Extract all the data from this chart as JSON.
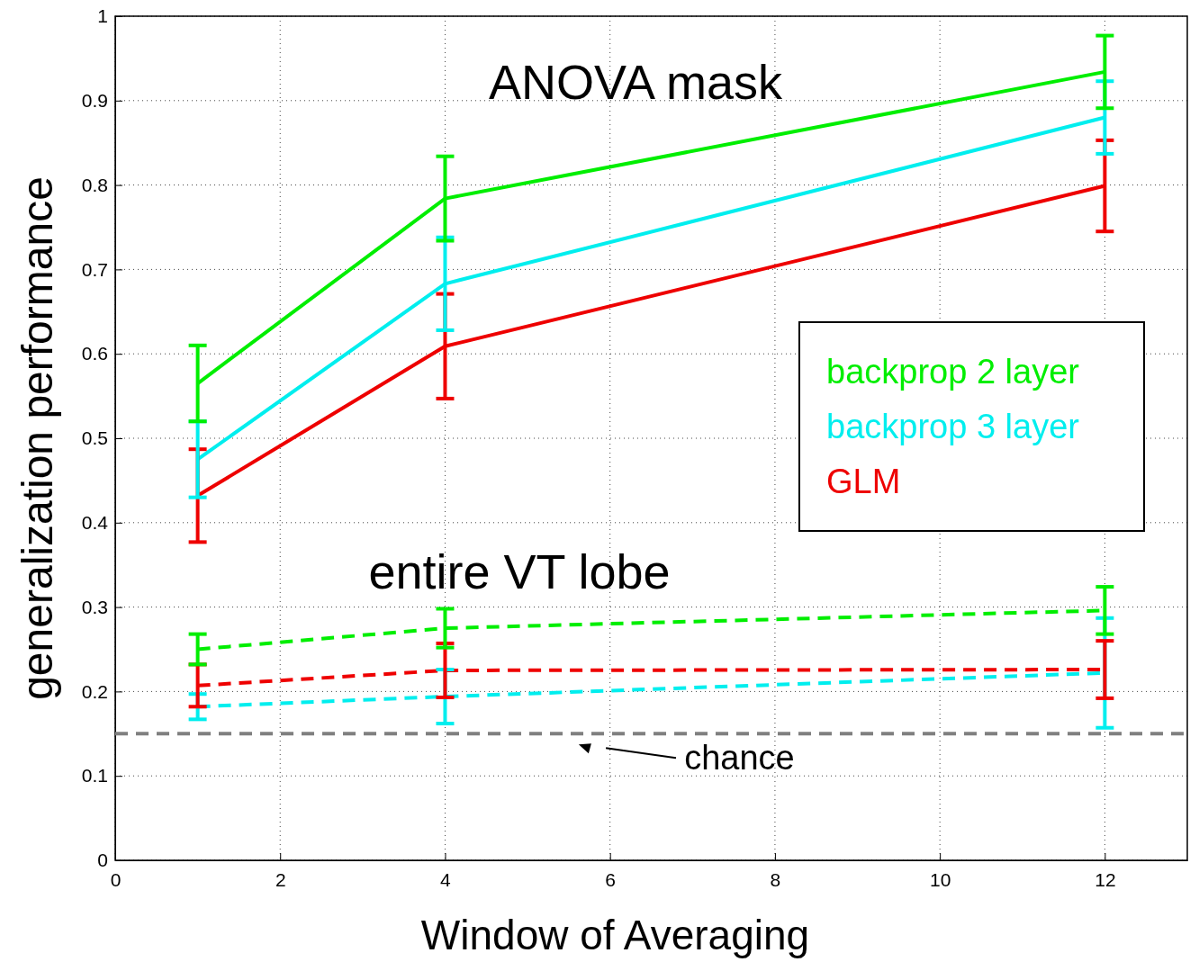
{
  "chart_data": {
    "type": "line",
    "xlabel": "Window of Averaging",
    "ylabel": "generalization performance",
    "x": [
      1,
      4,
      12
    ],
    "xlim": [
      0,
      13
    ],
    "ylim": [
      0,
      1
    ],
    "xticks": [
      0,
      2,
      4,
      6,
      8,
      10,
      12
    ],
    "yticks": [
      0,
      0.1,
      0.2,
      0.3,
      0.4,
      0.5,
      0.6,
      0.7,
      0.8,
      0.9,
      1
    ],
    "grid": true,
    "legend": "right",
    "marker": "none",
    "series": [
      {
        "name": "backprop 2 layer",
        "color": "#00ee00",
        "line_style": "solid",
        "values": [
          0.565,
          0.784,
          0.934
        ],
        "errors": [
          0.045,
          0.05,
          0.043
        ]
      },
      {
        "name": "backprop 3 layer",
        "color": "#00eeee",
        "line_style": "solid",
        "values": [
          0.475,
          0.683,
          0.88
        ],
        "errors": [
          0.045,
          0.055,
          0.043
        ]
      },
      {
        "name": "GLM",
        "color": "#ee0000",
        "line_style": "solid",
        "values": [
          0.432,
          0.609,
          0.799
        ],
        "errors": [
          0.055,
          0.062,
          0.054
        ]
      },
      {
        "color": "#00ee00",
        "line_style": "dashed",
        "values": [
          0.25,
          0.275,
          0.296
        ],
        "errors": [
          0.018,
          0.023,
          0.028
        ]
      },
      {
        "color": "#ee0000",
        "line_style": "dashed",
        "values": [
          0.207,
          0.225,
          0.226
        ],
        "errors": [
          0.025,
          0.032,
          0.034
        ]
      },
      {
        "color": "#00eeee",
        "line_style": "dashed",
        "values": [
          0.182,
          0.194,
          0.222
        ],
        "errors": [
          0.015,
          0.032,
          0.065
        ]
      }
    ],
    "ref_lines": [
      {
        "axis": "y",
        "value": 0.15,
        "label": "chance",
        "color": "#808080",
        "line_style": "dashed"
      }
    ],
    "annotations": [
      "ANOVA mask",
      "entire VT lobe"
    ]
  }
}
